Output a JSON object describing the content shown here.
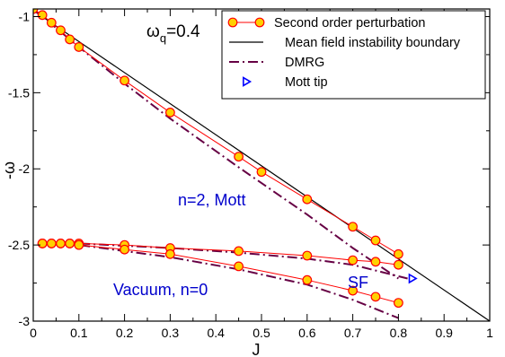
{
  "chart_data": {
    "type": "line",
    "xlabel": "J",
    "ylabel": "-ω",
    "xlim": [
      0,
      1
    ],
    "ylim": [
      -3,
      -0.95
    ],
    "xticks": [
      0,
      0.1,
      0.2,
      0.3,
      0.4,
      0.5,
      0.6,
      0.7,
      0.8,
      0.9,
      1
    ],
    "xtick_labels": [
      "0",
      "0.1",
      "0.2",
      "0.3",
      "0.4",
      "0.5",
      "0.6",
      "0.7",
      "0.8",
      "0.9",
      "1"
    ],
    "yticks": [
      -3,
      -2.5,
      -2,
      -1.5,
      -1
    ],
    "ytick_labels": [
      "-3",
      "-2.5",
      "-2",
      "-1.5",
      "-1"
    ],
    "legend_position": "top-right",
    "colors": {
      "perturbation_line": "#ff0000",
      "perturbation_marker_fill": "#ffd000",
      "mean_field": "#000000",
      "dmrg": "#660044",
      "mott_tip": "#0000ff",
      "annotation": "#0000cc"
    },
    "annotations": {
      "omega_q": {
        "main": "ω",
        "sub": "q",
        "value": "=0.4"
      },
      "mott_region": "n=2, Mott",
      "vacuum_region": "Vacuum, n=0",
      "sf_region": "SF"
    },
    "legend": [
      {
        "name": "Second order perturbation",
        "style": "line-circle",
        "color": "#ff0000"
      },
      {
        "name": "Mean field instability boundary",
        "style": "solid",
        "color": "#000000"
      },
      {
        "name": "DMRG",
        "style": "dash-dot",
        "color": "#660044"
      },
      {
        "name": "Mott tip",
        "style": "triangle",
        "color": "#0000ff"
      }
    ],
    "series": [
      {
        "name": "Second order perturbation",
        "group": "mott-lower",
        "x": [
          0,
          0.02,
          0.04,
          0.06,
          0.08,
          0.1,
          0.2,
          0.3,
          0.45,
          0.5,
          0.6,
          0.7,
          0.75,
          0.8
        ],
        "y": [
          -0.95,
          -0.99,
          -1.04,
          -1.09,
          -1.15,
          -1.2,
          -1.42,
          -1.63,
          -1.92,
          -2.02,
          -2.2,
          -2.38,
          -2.47,
          -2.56
        ]
      },
      {
        "name": "Second order perturbation",
        "group": "mott-upper",
        "x": [
          0.02,
          0.04,
          0.06,
          0.08,
          0.1,
          0.2,
          0.3,
          0.45,
          0.6,
          0.7,
          0.75,
          0.8
        ],
        "y": [
          -2.49,
          -2.49,
          -2.49,
          -2.49,
          -2.49,
          -2.5,
          -2.52,
          -2.54,
          -2.57,
          -2.6,
          -2.61,
          -2.63
        ]
      },
      {
        "name": "Second order perturbation",
        "group": "vacuum",
        "x": [
          0.02,
          0.04,
          0.06,
          0.08,
          0.1,
          0.2,
          0.3,
          0.45,
          0.6,
          0.7,
          0.75,
          0.8
        ],
        "y": [
          -2.49,
          -2.49,
          -2.49,
          -2.49,
          -2.5,
          -2.53,
          -2.56,
          -2.64,
          -2.73,
          -2.8,
          -2.84,
          -2.88
        ]
      },
      {
        "name": "Mean field instability boundary",
        "x": [
          0,
          1
        ],
        "y": [
          -0.96,
          -3.0
        ]
      },
      {
        "name": "DMRG",
        "group": "mott-boundary",
        "x": [
          0,
          0.1,
          0.2,
          0.3,
          0.45,
          0.6,
          0.7,
          0.8
        ],
        "y": [
          -0.95,
          -1.2,
          -1.44,
          -1.67,
          -1.99,
          -2.3,
          -2.52,
          -2.72
        ]
      },
      {
        "name": "DMRG",
        "group": "mott-particle",
        "x": [
          0.02,
          0.1,
          0.3,
          0.45,
          0.6,
          0.7,
          0.82
        ],
        "y": [
          -2.49,
          -2.49,
          -2.52,
          -2.55,
          -2.59,
          -2.63,
          -2.72
        ]
      },
      {
        "name": "DMRG",
        "group": "vacuum-boundary",
        "x": [
          0.02,
          0.1,
          0.2,
          0.3,
          0.45,
          0.6,
          0.7,
          0.8
        ],
        "y": [
          -2.49,
          -2.5,
          -2.54,
          -2.58,
          -2.66,
          -2.76,
          -2.86,
          -2.98
        ]
      },
      {
        "name": "Mott tip",
        "x": [
          0.83
        ],
        "y": [
          -2.72
        ]
      }
    ]
  }
}
